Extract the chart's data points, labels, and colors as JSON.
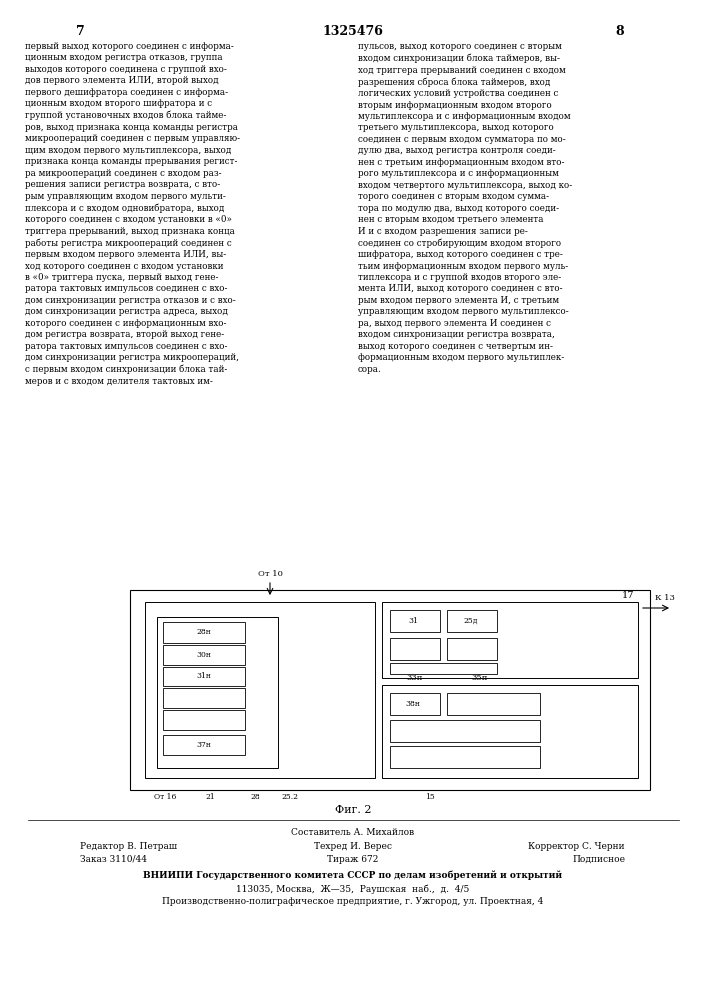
{
  "page_number_center": "1325476",
  "page_number_left": "7",
  "page_number_right": "8",
  "left_column_text": "первый выход которого соединен с информа-\nционным входом регистра отказов, группа\nвыходов которого соединена с группой вхо-\nдов первого элемента ИЛИ, второй выход\nпервого дешифратора соединен с информа-\nционным входом второго шифратора и с\nгруппой установочных входов блока тайме-\nров, выход признака конца команды регистра\nмикроопераций соединен с первым управляю-\nщим входом первого мультиплексора, выход\nпризнака конца команды прерывания регист-\nра микроопераций соединен с входом раз-\nрешения записи регистра возврата, с вто-\nрым управляющим входом первого мульти-\nплексора и с входом одновибратора, выход\nкоторого соединен с входом установки в «0»\nтриггера прерываний, выход признака конца\nработы регистра микроопераций соединен с\nпервым входом первого элемента ИЛИ, вы-\nход которого соединен с входом установки\nв «0» триггера пуска, первый выход гене-\nратора тактовых импульсов соединен с вхо-\nдом синхронизации регистра отказов и с вхо-\nдом синхронизации регистра адреса, выход\nкоторого соединен с информационным вхо-\nдом регистра возврата, второй выход гене-\nратора тактовых импульсов соединен с вхо-\nдом синхронизации регистра микроопераций,\nс первым входом синхронизации блока тай-\nмеров и с входом делителя тактовых им-",
  "right_column_text": "пульсов, выход которого соединен с вторым\nвходом синхронизации блока таймеров, вы-\nход триггера прерываний соединен с входом\nразрешения сброса блока таймеров, вход\nлогических условий устройства соединен с\nвторым информационным входом второго\nмультиплексора и с информационным входом\nтретьего мультиплексора, выход которого\nсоединен с первым входом сумматора по мо-\nдулю два, выход регистра контроля соеди-\nнен с третьим информационным входом вто-\nрого мультиплексора и с информационным\nвходом четвертого мультиплексора, выход ко-\nторого соединен с вторым входом сумма-\nтора по модулю два, выход которого соеди-\nнен с вторым входом третьего элемента\nИ и с входом разрешения записи ре-\nсоединен со стробирующим входом второго\nшифратора, выход которого соединен с тре-\nтьим информационным входом первого муль-\nтиплексора и с группой входов второго эле-\nмента ИЛИ, выход которого соединен с вто-\nрым входом первого элемента И, с третьим\nуправляющим входом первого мультиплексо-\nра, выход первого элемента И соединен с\nвходом синхронизации регистра возврата,\nвыход которого соединен с четвертым ин-\nформационным входом первого мультиплек-\nсора.",
  "fig_label": "Фиг. 2",
  "footer_line1": "Составитель А. Михайлов",
  "footer_line2_left": "Редактор В. Петраш",
  "footer_line2_mid": "Техред И. Верес",
  "footer_line2_right": "Корректор С. Черни",
  "footer_line3_left": "Заказ 3110/44",
  "footer_line3_mid": "Тираж 672",
  "footer_line3_right": "Подписное",
  "footer_line4": "ВНИИПИ Государственного комитета СССР по делам изобретений и открытий",
  "footer_line5": "113035, Москва,  Ж—35,  Раушская  наб.,  д.  4/5",
  "footer_line6": "Производственно-полиграфическое предприятие, г. Ужгород, ул. Проектная, 4",
  "bg_color": "#ffffff",
  "text_color": "#000000"
}
